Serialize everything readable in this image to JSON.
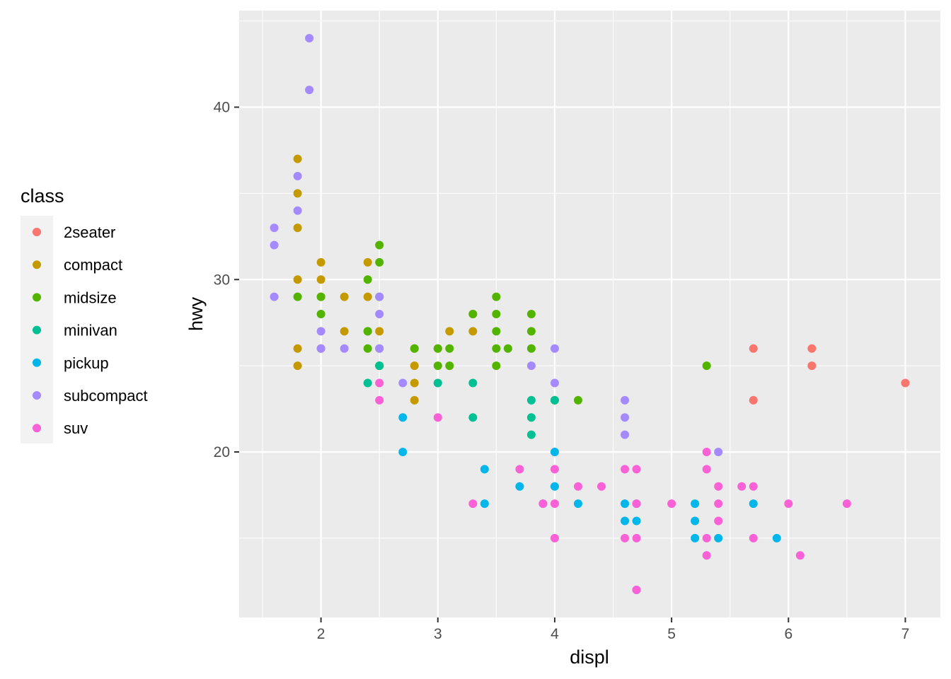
{
  "chart_data": {
    "type": "scatter",
    "xlabel": "displ",
    "ylabel": "hwy",
    "xlim": [
      1.3,
      7.3
    ],
    "ylim": [
      10.4,
      45.6
    ],
    "x_ticks": [
      2,
      3,
      4,
      5,
      6,
      7
    ],
    "y_ticks": [
      20,
      30,
      40
    ],
    "x_tick_labels": [
      "2",
      "3",
      "4",
      "5",
      "6",
      "7"
    ],
    "y_tick_labels": [
      "20",
      "30",
      "40"
    ],
    "grid": true,
    "legend": {
      "title": "class",
      "placement": "left",
      "entries": [
        "2seater",
        "compact",
        "midsize",
        "minivan",
        "pickup",
        "subcompact",
        "suv"
      ]
    },
    "colors": {
      "2seater": "#F8766D",
      "compact": "#C49A00",
      "midsize": "#53B400",
      "minivan": "#00C094",
      "pickup": "#00B6EB",
      "subcompact": "#A58AFF",
      "suv": "#FB61D7",
      "panel_background": "#EBEBEB",
      "grid": "#FFFFFF"
    },
    "series": [
      {
        "name": "2seater",
        "points": [
          [
            5.7,
            26
          ],
          [
            5.7,
            23
          ],
          [
            6.2,
            26
          ],
          [
            6.2,
            25
          ],
          [
            7.0,
            24
          ]
        ]
      },
      {
        "name": "compact",
        "points": [
          [
            1.8,
            37
          ],
          [
            1.8,
            35
          ],
          [
            1.8,
            33
          ],
          [
            1.8,
            30
          ],
          [
            1.8,
            26
          ],
          [
            1.8,
            25
          ],
          [
            2.0,
            31
          ],
          [
            2.0,
            30
          ],
          [
            2.0,
            29
          ],
          [
            2.0,
            26
          ],
          [
            2.2,
            29
          ],
          [
            2.2,
            27
          ],
          [
            2.4,
            31
          ],
          [
            2.4,
            29
          ],
          [
            2.4,
            27
          ],
          [
            2.5,
            27
          ],
          [
            2.5,
            25
          ],
          [
            2.8,
            26
          ],
          [
            2.8,
            25
          ],
          [
            2.8,
            24
          ],
          [
            2.8,
            23
          ],
          [
            3.0,
            26
          ],
          [
            3.1,
            27
          ],
          [
            3.3,
            28
          ],
          [
            3.3,
            27
          ]
        ]
      },
      {
        "name": "midsize",
        "points": [
          [
            1.8,
            29
          ],
          [
            2.0,
            29
          ],
          [
            2.0,
            28
          ],
          [
            2.4,
            30
          ],
          [
            2.4,
            27
          ],
          [
            2.4,
            26
          ],
          [
            2.5,
            32
          ],
          [
            2.5,
            31
          ],
          [
            2.5,
            29
          ],
          [
            2.5,
            26
          ],
          [
            2.5,
            25
          ],
          [
            2.8,
            26
          ],
          [
            3.0,
            26
          ],
          [
            3.0,
            25
          ],
          [
            3.1,
            26
          ],
          [
            3.1,
            25
          ],
          [
            3.3,
            28
          ],
          [
            3.5,
            29
          ],
          [
            3.5,
            28
          ],
          [
            3.5,
            27
          ],
          [
            3.5,
            26
          ],
          [
            3.5,
            25
          ],
          [
            3.6,
            26
          ],
          [
            3.8,
            28
          ],
          [
            3.8,
            27
          ],
          [
            3.8,
            26
          ],
          [
            4.0,
            23
          ],
          [
            4.2,
            23
          ],
          [
            5.3,
            25
          ]
        ]
      },
      {
        "name": "minivan",
        "points": [
          [
            2.4,
            24
          ],
          [
            2.5,
            25
          ],
          [
            3.0,
            24
          ],
          [
            3.3,
            24
          ],
          [
            3.3,
            22
          ],
          [
            3.8,
            23
          ],
          [
            3.8,
            22
          ],
          [
            3.8,
            21
          ],
          [
            4.0,
            23
          ]
        ]
      },
      {
        "name": "pickup",
        "points": [
          [
            2.7,
            22
          ],
          [
            2.7,
            20
          ],
          [
            3.4,
            19
          ],
          [
            3.4,
            17
          ],
          [
            3.7,
            18
          ],
          [
            3.9,
            17
          ],
          [
            4.0,
            20
          ],
          [
            4.0,
            18
          ],
          [
            4.2,
            17
          ],
          [
            4.6,
            17
          ],
          [
            4.6,
            16
          ],
          [
            4.7,
            17
          ],
          [
            4.7,
            16
          ],
          [
            4.7,
            12
          ],
          [
            5.2,
            17
          ],
          [
            5.2,
            16
          ],
          [
            5.2,
            15
          ],
          [
            5.4,
            15
          ],
          [
            5.7,
            17
          ],
          [
            5.9,
            15
          ]
        ]
      },
      {
        "name": "subcompact",
        "points": [
          [
            1.6,
            33
          ],
          [
            1.6,
            32
          ],
          [
            1.6,
            29
          ],
          [
            1.8,
            36
          ],
          [
            1.8,
            34
          ],
          [
            1.9,
            44
          ],
          [
            1.9,
            41
          ],
          [
            2.0,
            27
          ],
          [
            2.0,
            26
          ],
          [
            2.2,
            26
          ],
          [
            2.5,
            29
          ],
          [
            2.5,
            28
          ],
          [
            2.5,
            26
          ],
          [
            2.7,
            24
          ],
          [
            3.8,
            25
          ],
          [
            4.0,
            26
          ],
          [
            4.0,
            24
          ],
          [
            4.6,
            23
          ],
          [
            4.6,
            22
          ],
          [
            4.6,
            21
          ],
          [
            5.4,
            20
          ]
        ]
      },
      {
        "name": "suv",
        "points": [
          [
            2.5,
            24
          ],
          [
            2.5,
            23
          ],
          [
            3.0,
            22
          ],
          [
            3.3,
            17
          ],
          [
            3.7,
            19
          ],
          [
            3.9,
            17
          ],
          [
            4.0,
            19
          ],
          [
            4.0,
            17
          ],
          [
            4.0,
            15
          ],
          [
            4.2,
            18
          ],
          [
            4.4,
            18
          ],
          [
            4.6,
            19
          ],
          [
            4.6,
            15
          ],
          [
            4.7,
            19
          ],
          [
            4.7,
            17
          ],
          [
            4.7,
            15
          ],
          [
            4.7,
            12
          ],
          [
            5.0,
            17
          ],
          [
            5.3,
            20
          ],
          [
            5.3,
            19
          ],
          [
            5.3,
            15
          ],
          [
            5.3,
            14
          ],
          [
            5.4,
            18
          ],
          [
            5.4,
            17
          ],
          [
            5.4,
            16
          ],
          [
            5.6,
            18
          ],
          [
            5.7,
            18
          ],
          [
            5.7,
            15
          ],
          [
            6.0,
            17
          ],
          [
            6.1,
            14
          ],
          [
            6.5,
            17
          ]
        ]
      }
    ]
  }
}
